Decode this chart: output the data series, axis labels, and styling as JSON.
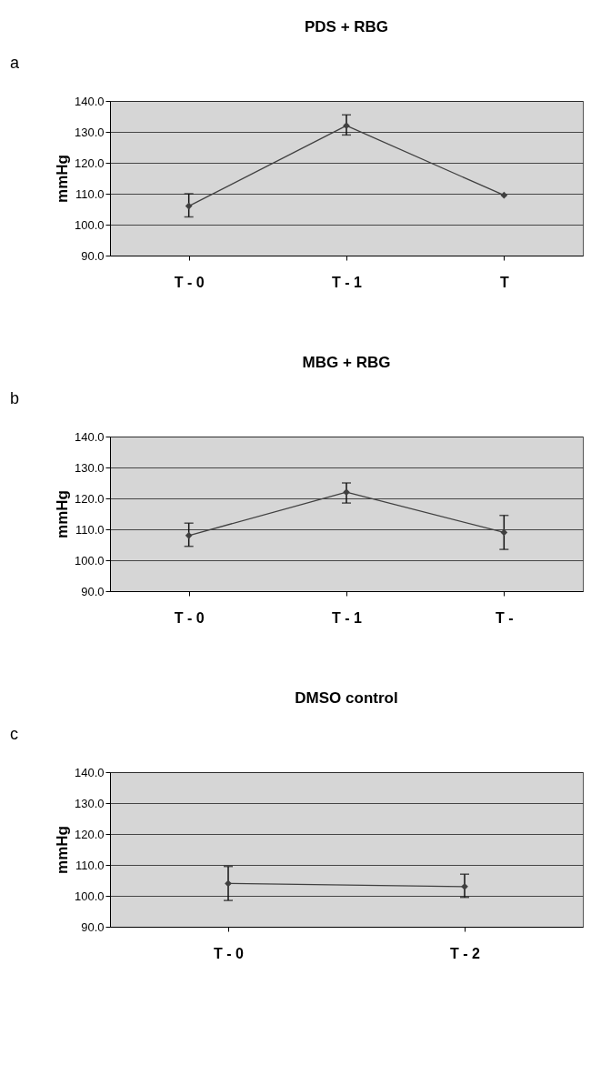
{
  "chart_data": [
    {
      "type": "line",
      "title": "PDS + RBG",
      "ylabel": "mmHg",
      "annotations": [
        "a"
      ],
      "categories": [
        "T - 0",
        "T - 1",
        "T"
      ],
      "values": [
        106,
        132,
        109.5
      ],
      "errors": [
        [
          102.5,
          110
        ],
        [
          129,
          135.5
        ],
        null
      ],
      "color": "#404040",
      "marker": "diamond",
      "ylim": [
        90,
        140
      ],
      "yticks": [
        {
          "value": 90,
          "label": "90.0"
        },
        {
          "value": 100,
          "label": "100.0"
        },
        {
          "value": 110,
          "label": "110.0"
        },
        {
          "value": 120,
          "label": "120.0"
        },
        {
          "value": 130,
          "label": "130.0"
        },
        {
          "value": 140,
          "label": "140.0"
        }
      ],
      "grid": "y"
    },
    {
      "type": "line",
      "title": "MBG + RBG",
      "ylabel": "mmHg",
      "annotations": [
        "b"
      ],
      "categories": [
        "T - 0",
        "T - 1",
        "T -"
      ],
      "values": [
        108,
        122,
        109
      ],
      "errors": [
        [
          104.5,
          112
        ],
        [
          118.5,
          125
        ],
        [
          103.5,
          114.5
        ]
      ],
      "color": "#404040",
      "marker": "diamond",
      "ylim": [
        90,
        140
      ],
      "yticks": [
        {
          "value": 90,
          "label": "90.0"
        },
        {
          "value": 100,
          "label": "100.0"
        },
        {
          "value": 110,
          "label": "110.0"
        },
        {
          "value": 120,
          "label": "120.0"
        },
        {
          "value": 130,
          "label": "130.0"
        },
        {
          "value": 140,
          "label": "140.0"
        }
      ],
      "grid": "y"
    },
    {
      "type": "line",
      "title": "DMSO control",
      "ylabel": "mmHg",
      "annotations": [
        "c"
      ],
      "categories": [
        "T - 0",
        "T - 2"
      ],
      "values": [
        104,
        103
      ],
      "errors": [
        [
          98.5,
          109.5
        ],
        [
          99.5,
          107
        ]
      ],
      "color": "#404040",
      "marker": "diamond",
      "ylim": [
        90,
        140
      ],
      "yticks": [
        {
          "value": 90,
          "label": "90.0"
        },
        {
          "value": 100,
          "label": "100.0"
        },
        {
          "value": 110,
          "label": "110.0"
        },
        {
          "value": 120,
          "label": "120.0"
        },
        {
          "value": 130,
          "label": "130.0"
        },
        {
          "value": 140,
          "label": "140.0"
        }
      ],
      "grid": "y"
    }
  ]
}
